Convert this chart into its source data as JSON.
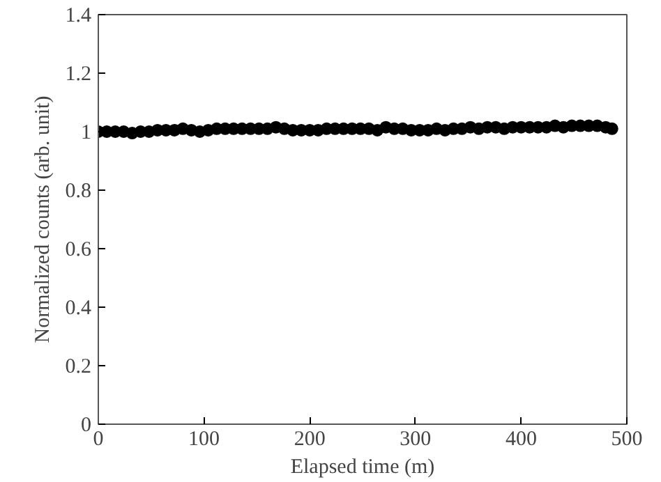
{
  "chart_data": {
    "type": "scatter",
    "xlabel": "Elapsed time (m)",
    "ylabel": "Normalized counts (arb. unit)",
    "x": [
      0,
      8,
      16,
      24,
      32,
      40,
      48,
      56,
      64,
      72,
      80,
      88,
      96,
      104,
      112,
      120,
      128,
      136,
      144,
      152,
      160,
      168,
      176,
      184,
      192,
      200,
      208,
      216,
      224,
      232,
      240,
      248,
      256,
      264,
      272,
      280,
      288,
      296,
      304,
      312,
      320,
      328,
      336,
      344,
      352,
      360,
      368,
      376,
      384,
      392,
      400,
      408,
      416,
      424,
      432,
      440,
      448,
      456,
      464,
      472,
      480,
      486
    ],
    "series": [
      {
        "color": "#000000",
        "values": [
          1.0,
          1.0,
          1.0,
          1.0,
          0.995,
          1.0,
          1.0,
          1.005,
          1.005,
          1.005,
          1.01,
          1.005,
          1.0,
          1.005,
          1.01,
          1.01,
          1.01,
          1.01,
          1.01,
          1.01,
          1.01,
          1.015,
          1.01,
          1.005,
          1.005,
          1.005,
          1.005,
          1.01,
          1.01,
          1.01,
          1.01,
          1.01,
          1.01,
          1.005,
          1.015,
          1.01,
          1.01,
          1.005,
          1.005,
          1.005,
          1.01,
          1.005,
          1.01,
          1.01,
          1.015,
          1.01,
          1.015,
          1.015,
          1.01,
          1.015,
          1.015,
          1.015,
          1.015,
          1.015,
          1.02,
          1.015,
          1.02,
          1.02,
          1.02,
          1.02,
          1.015,
          1.01
        ]
      }
    ],
    "xlim": [
      0,
      500
    ],
    "ylim": [
      0,
      1.4
    ],
    "xticks": [
      0,
      100,
      200,
      300,
      400,
      500
    ],
    "yticks": [
      0,
      0.2,
      0.4,
      0.6,
      0.8,
      1,
      1.2,
      1.4
    ],
    "grid": false,
    "marker": "circle"
  }
}
